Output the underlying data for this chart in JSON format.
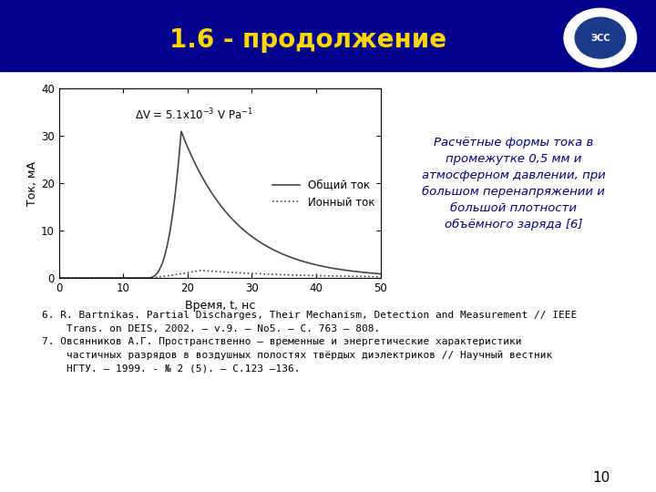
{
  "title": "1.6 - продолжение",
  "title_color": "#FFD700",
  "header_bg": "#00008B",
  "slide_bg": "#FFFFFF",
  "page_number": "10",
  "right_box_text": "Расчётные формы тока в\nпромежутке 0,5 мм и\nатмосферном давлении, при\nбольшом перенапряжении и\nбольшой плотности\nобъёмного заряда [6]",
  "right_box_bg": "#FFFFD0",
  "right_box_border": "#5B8B5B",
  "annotation_text": "ΔV = 5.1×10-3 V Pa-1",
  "legend_solid": "Общий ток",
  "legend_dot": "Ионный ток",
  "xlabel": "Время, t, нс",
  "ylabel": "Ток, мА",
  "xlim": [
    0,
    50
  ],
  "ylim": [
    0,
    40
  ],
  "xticks": [
    0,
    10,
    20,
    30,
    40,
    50
  ],
  "yticks": [
    0,
    10,
    20,
    30,
    40
  ],
  "ref_box_text_line1": "6. R. Bartnikas. Partial Discharges, Their Mechanism, Detection and Measurement // IEEE",
  "ref_box_text_line2": "    Trans. on DEIS, 2002. – v.9. – No5. – C. 763 – 808.",
  "ref_box_text_line3": "7. Овсянников А.Г. Пространственно – временные и энергетические характеристики",
  "ref_box_text_line4": "    частичных разрядов в воздушных полостях твёрдых диэлектриков // Научный вестник",
  "ref_box_text_line5": "    НГТУ. – 1999. - № 2 (5). – С.123 –136.",
  "ref_box_bg": "#E8FFE8",
  "ref_box_border": "#5B8B5B"
}
